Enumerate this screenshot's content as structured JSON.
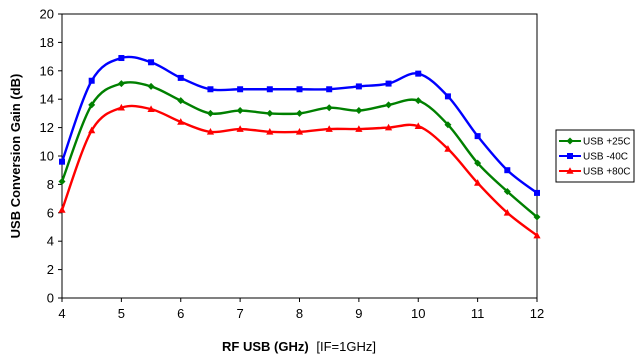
{
  "chart_data": {
    "type": "line",
    "xlabel": "RF USB (GHz)",
    "xlabel_suffix": "[IF=1GHz]",
    "ylabel": "USB Conversion Gain (dB)",
    "xlim": [
      4,
      12
    ],
    "ylim": [
      0,
      20
    ],
    "xticks": [
      "4",
      "5",
      "6",
      "7",
      "8",
      "9",
      "10",
      "11",
      "12"
    ],
    "yticks": [
      "0",
      "2",
      "4",
      "6",
      "8",
      "10",
      "12",
      "14",
      "16",
      "18",
      "20"
    ],
    "grid": false,
    "legend_position": "right",
    "x": [
      4,
      4.5,
      5,
      5.5,
      6,
      6.5,
      7,
      7.5,
      8,
      8.5,
      9,
      9.5,
      10,
      10.5,
      11,
      11.5,
      12
    ],
    "series": [
      {
        "name": "USB +25C",
        "color": "#008000",
        "marker": "diamond",
        "values": [
          8.2,
          13.6,
          15.1,
          14.9,
          13.9,
          13.0,
          13.2,
          13.0,
          13.0,
          13.4,
          13.2,
          13.6,
          13.9,
          12.2,
          9.5,
          7.5,
          5.7
        ]
      },
      {
        "name": "USB -40C",
        "color": "#0000ff",
        "marker": "square",
        "values": [
          9.6,
          15.3,
          16.9,
          16.6,
          15.5,
          14.7,
          14.7,
          14.7,
          14.7,
          14.7,
          14.9,
          15.1,
          15.8,
          14.2,
          11.4,
          9.0,
          7.4
        ]
      },
      {
        "name": "USB +80C",
        "color": "#ff0000",
        "marker": "triangle",
        "values": [
          6.2,
          11.8,
          13.4,
          13.3,
          12.4,
          11.7,
          11.9,
          11.7,
          11.7,
          11.9,
          11.9,
          12.0,
          12.1,
          10.5,
          8.1,
          6.0,
          4.4
        ]
      }
    ]
  }
}
